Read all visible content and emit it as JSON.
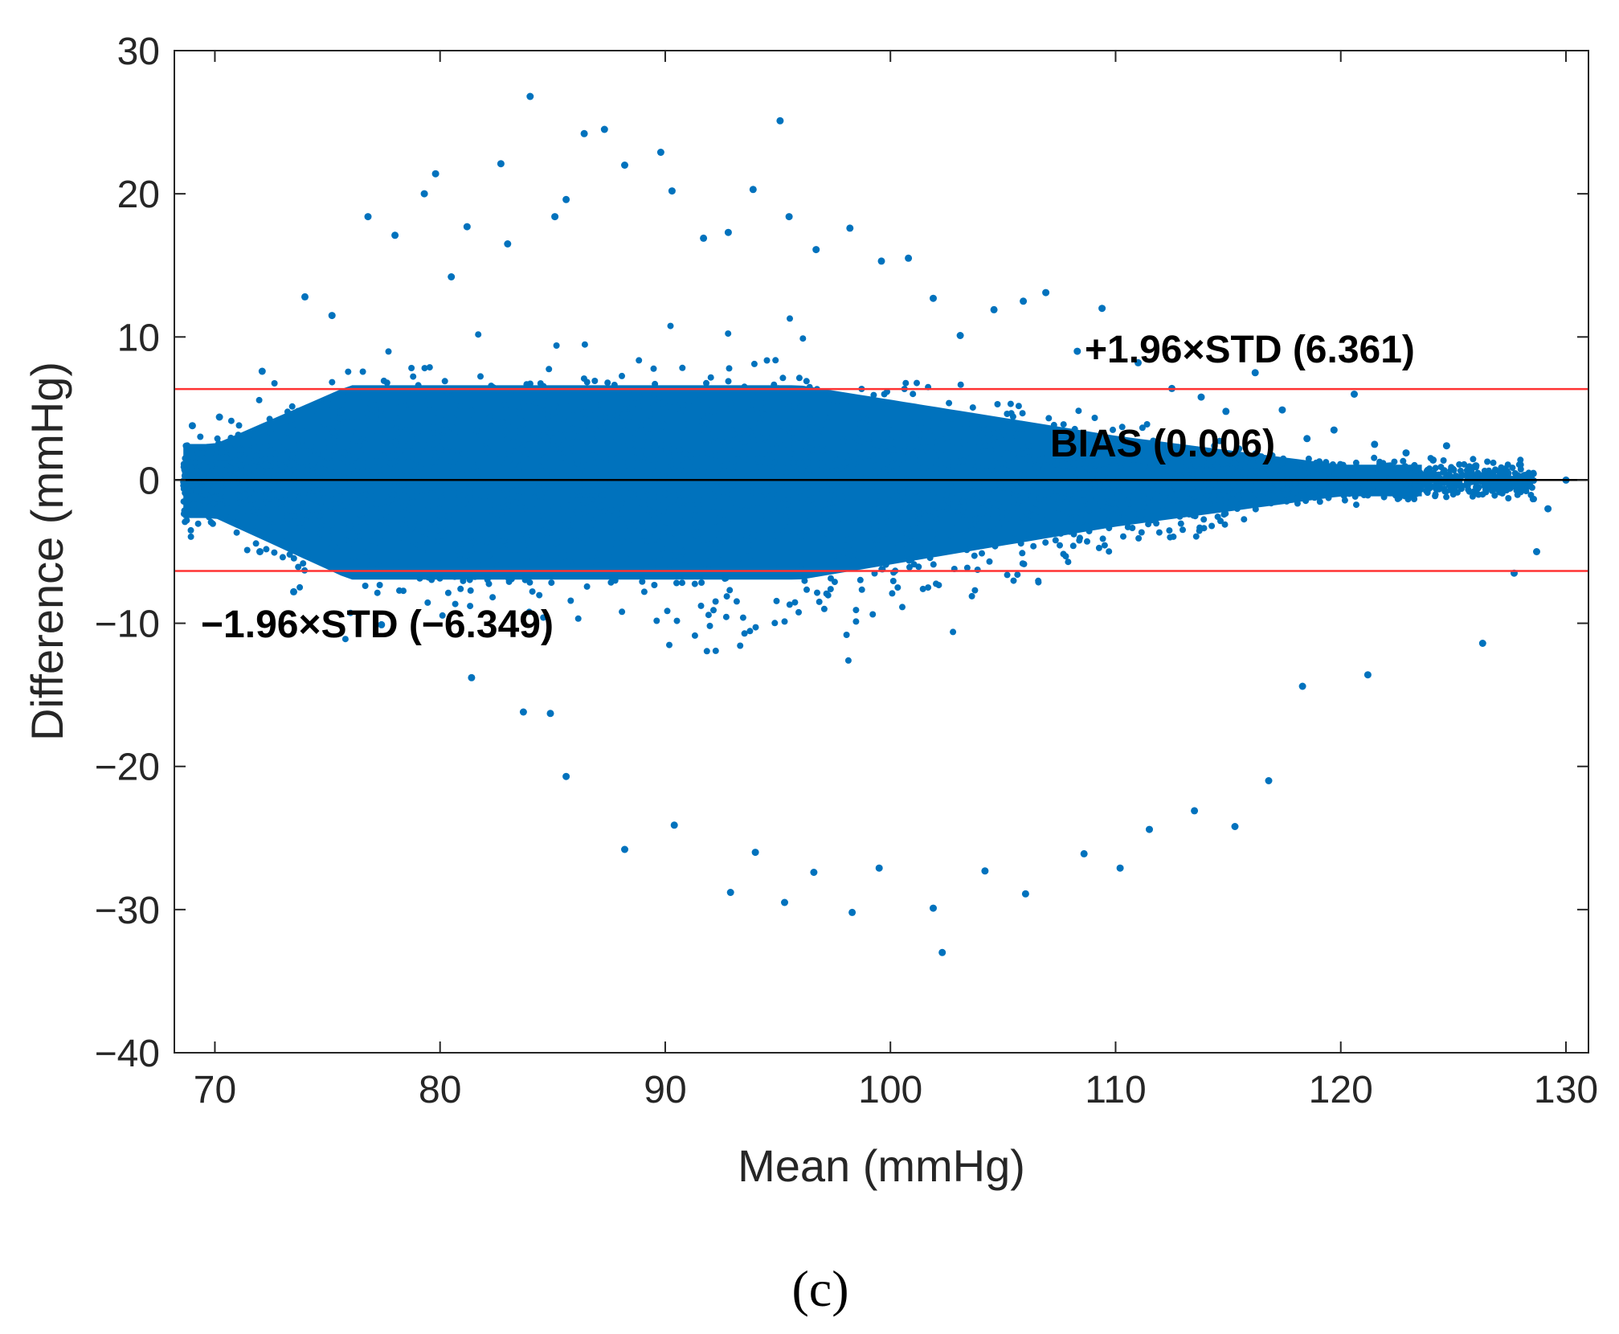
{
  "chart_data": {
    "type": "scatter",
    "title": "",
    "xlabel": "Mean (mmHg)",
    "ylabel": "Difference (mmHg)",
    "xlim": [
      68.2,
      131
    ],
    "ylim": [
      -40,
      30
    ],
    "x_ticks": [
      "70",
      "80",
      "90",
      "100",
      "110",
      "120",
      "130"
    ],
    "y_ticks": [
      "30",
      "20",
      "10",
      "0",
      "−10",
      "−20",
      "−30",
      "−40"
    ],
    "x_tick_values": [
      70,
      80,
      90,
      100,
      110,
      120,
      130
    ],
    "y_tick_values": [
      30,
      20,
      10,
      0,
      -10,
      -20,
      -30,
      -40
    ],
    "point_color": "#0072BD",
    "reference_lines": [
      {
        "name": "upper-limit",
        "label": "+1.96×STD (6.361)",
        "value": 6.361,
        "color": "#FF3333"
      },
      {
        "name": "bias",
        "label": "BIAS (0.006)",
        "value": 0.006,
        "color": "#000000"
      },
      {
        "name": "lower-limit",
        "label": "−1.96×STD (−6.349)",
        "value": -6.349,
        "color": "#FF3333"
      }
    ],
    "series": [
      {
        "name": "Differences",
        "description_points": "dense cloud of mean vs difference pairs; sampled outliers listed",
        "x": [
          69.0,
          70.2,
          72.1,
          74.0,
          75.2,
          76.8,
          78.0,
          79.3,
          79.8,
          80.5,
          81.2,
          82.7,
          83.0,
          84.0,
          85.1,
          85.6,
          86.4,
          87.3,
          88.2,
          89.8,
          90.3,
          91.7,
          92.8,
          93.9,
          95.1,
          95.5,
          96.7,
          98.2,
          99.6,
          100.8,
          101.9,
          103.1,
          104.6,
          105.9,
          106.9,
          108.3,
          109.4,
          111.0,
          112.5,
          113.8,
          114.9,
          116.2,
          117.4,
          118.5,
          119.7,
          120.6,
          121.5,
          122.9,
          124.1,
          124.7,
          126.0,
          126.3,
          127.7,
          128.7,
          129.2,
          130.0,
          83.7,
          85.6,
          88.2,
          90.4,
          92.9,
          94.0,
          95.3,
          96.6,
          98.3,
          99.5,
          101.9,
          102.3,
          104.2,
          106.0,
          108.6,
          110.2,
          111.5,
          113.5,
          115.3,
          116.8,
          118.3,
          121.2,
          72.0,
          73.5,
          77.4,
          81.4,
          84.9
        ],
        "y": [
          3.8,
          4.4,
          7.6,
          12.8,
          11.5,
          18.4,
          17.1,
          20.0,
          21.4,
          14.2,
          17.7,
          22.1,
          16.5,
          26.8,
          18.4,
          19.6,
          24.2,
          24.5,
          22.0,
          22.9,
          20.2,
          16.9,
          17.3,
          20.3,
          25.1,
          18.4,
          16.1,
          17.6,
          15.3,
          15.5,
          12.7,
          10.1,
          11.9,
          12.5,
          13.1,
          9.0,
          12.0,
          8.2,
          6.4,
          5.8,
          4.8,
          7.5,
          4.9,
          2.9,
          3.5,
          6.0,
          2.5,
          1.9,
          1.4,
          2.4,
          1.0,
          -11.4,
          -6.5,
          -5.0,
          -2.0,
          0.0,
          -16.2,
          -20.7,
          -25.8,
          -24.1,
          -28.8,
          -26.0,
          -29.5,
          -27.4,
          -30.2,
          -27.1,
          -29.9,
          -33.0,
          -27.3,
          -28.9,
          -26.1,
          -27.1,
          -24.4,
          -23.1,
          -24.2,
          -21.0,
          -14.4,
          -13.6,
          -5.0,
          -7.8,
          -10.1,
          -13.8,
          -16.3
        ]
      }
    ]
  },
  "panel_label": "(c)"
}
